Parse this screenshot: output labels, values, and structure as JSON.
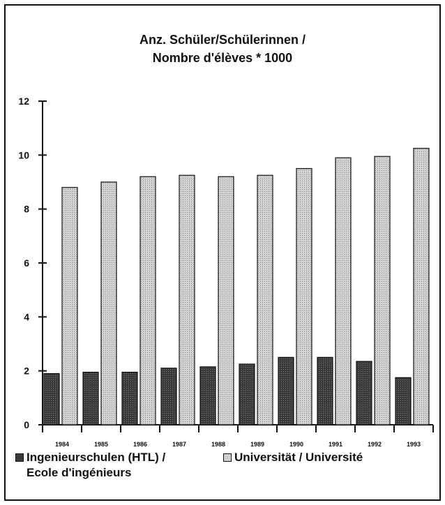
{
  "chart_data": {
    "type": "bar",
    "title_lines": [
      "Anz. Schüler/Schülerinnen /",
      "Nombre d'élèves * 1000"
    ],
    "categories": [
      "1984",
      "1985",
      "1986",
      "1987",
      "1988",
      "1989",
      "1990",
      "1991",
      "1992",
      "1993"
    ],
    "series": [
      {
        "name": "Ingenieurschulen (HTL) / Ecole d'ingénieurs",
        "legend_lines": [
          "Ingenieurschulen (HTL) /",
          "Ecole d'ingénieurs"
        ],
        "color": "#444444",
        "values": [
          1.9,
          1.95,
          1.95,
          2.1,
          2.15,
          2.25,
          2.5,
          2.5,
          2.35,
          1.75
        ]
      },
      {
        "name": "Universität / Université",
        "legend_lines": [
          "Universität / Université"
        ],
        "color": "#c4c4c4",
        "values": [
          8.8,
          9.0,
          9.2,
          9.25,
          9.2,
          9.25,
          9.5,
          9.9,
          9.95,
          10.25
        ]
      }
    ],
    "y_ticks": [
      "0",
      "2",
      "4",
      "6",
      "8",
      "10",
      "12"
    ],
    "ylim": [
      0,
      12
    ],
    "grid": false,
    "legend_position": "bottom"
  }
}
